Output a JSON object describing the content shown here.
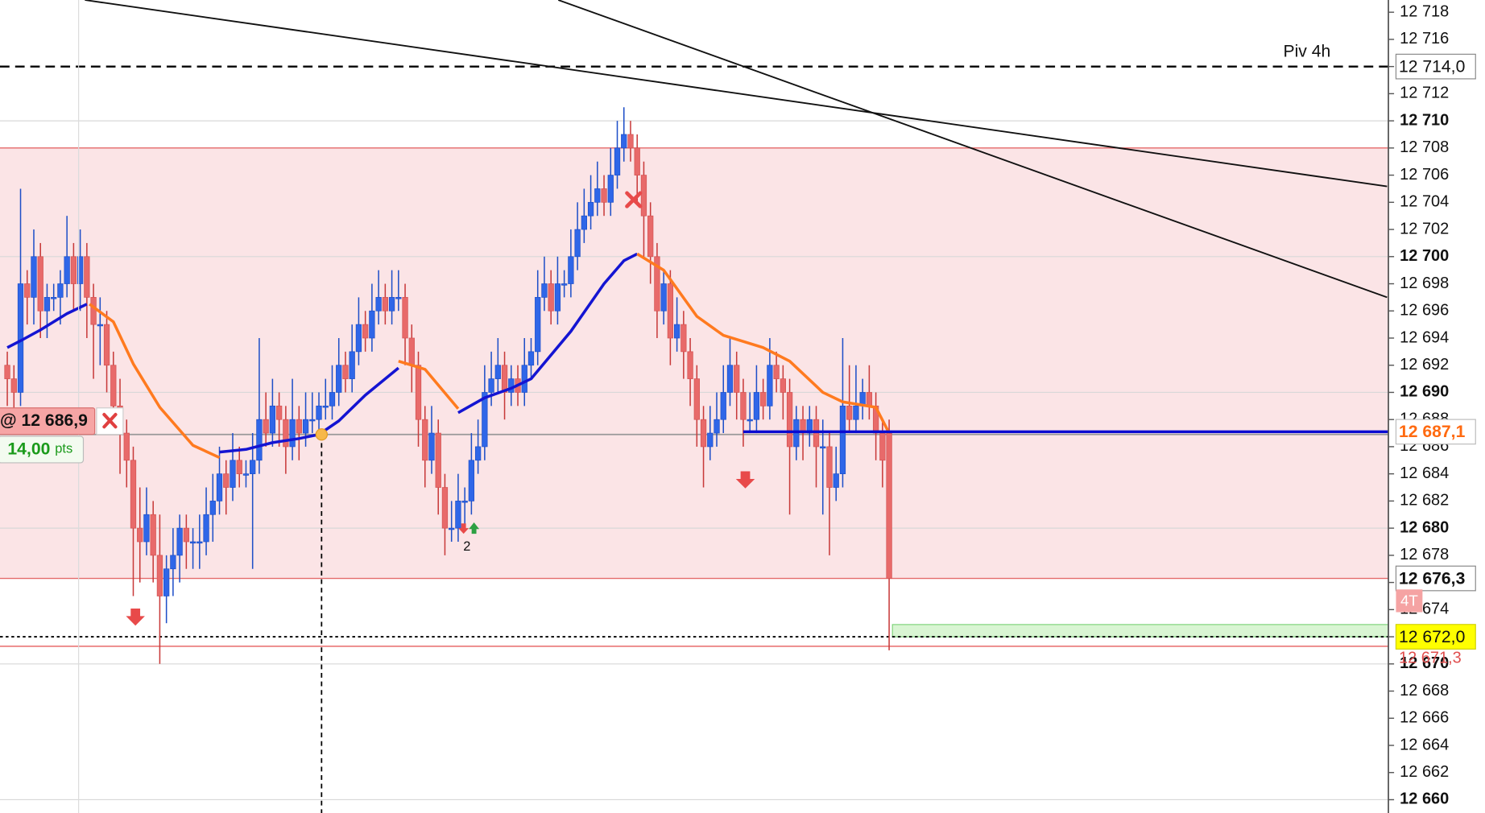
{
  "chart_data": {
    "type": "candlestick",
    "xlim": [
      -1.1,
      208.3
    ],
    "ylim": [
      12659.02,
      12718.9
    ],
    "yticks": [
      {
        "value": 12660,
        "label": "12 660"
      },
      {
        "value": 12662,
        "label": "12 662"
      },
      {
        "value": 12664,
        "label": "12 664"
      },
      {
        "value": 12666,
        "label": "12 666"
      },
      {
        "value": 12668,
        "label": "12 668"
      },
      {
        "value": 12670,
        "label": "12 670"
      },
      {
        "value": 12672,
        "label": "12 672"
      },
      {
        "value": 12674,
        "label": "12 674"
      },
      {
        "value": 12676,
        "label": "12 676"
      },
      {
        "value": 12678,
        "label": "12 678"
      },
      {
        "value": 12680,
        "label": "12 680"
      },
      {
        "value": 12682,
        "label": "12 682"
      },
      {
        "value": 12684,
        "label": "12 684"
      },
      {
        "value": 12686,
        "label": "12 686"
      },
      {
        "value": 12688,
        "label": "12 688"
      },
      {
        "value": 12690,
        "label": "12 690"
      },
      {
        "value": 12692,
        "label": "12 692"
      },
      {
        "value": 12694,
        "label": "12 694"
      },
      {
        "value": 12696,
        "label": "12 696"
      },
      {
        "value": 12698,
        "label": "12 698"
      },
      {
        "value": 12700,
        "label": "12 700"
      },
      {
        "value": 12702,
        "label": "12 702"
      },
      {
        "value": 12704,
        "label": "12 704"
      },
      {
        "value": 12706,
        "label": "12 706"
      },
      {
        "value": 12708,
        "label": "12 708"
      },
      {
        "value": 12710,
        "label": "12 710"
      },
      {
        "value": 12712,
        "label": "12 712"
      },
      {
        "value": 12714,
        "label": "12 714"
      },
      {
        "value": 12716,
        "label": "12 716"
      },
      {
        "value": 12718,
        "label": "12 718"
      }
    ],
    "up_color": "#2f66e8",
    "down_color": "#e86a6a",
    "candles": [
      [
        12692,
        12693,
        12689,
        12691
      ],
      [
        12691,
        12692,
        12688,
        12690
      ],
      [
        12690,
        12705,
        12689,
        12698
      ],
      [
        12698,
        12699,
        12695,
        12697
      ],
      [
        12697,
        12702,
        12695,
        12700
      ],
      [
        12700,
        12701,
        12694,
        12696
      ],
      [
        12696,
        12698,
        12694,
        12697
      ],
      [
        12697,
        12698,
        12696,
        12697
      ],
      [
        12697,
        12699,
        12695,
        12698
      ],
      [
        12698,
        12703,
        12697,
        12700
      ],
      [
        12700,
        12701,
        12696,
        12698
      ],
      [
        12698,
        12702,
        12696,
        12700
      ],
      [
        12700,
        12701,
        12694,
        12697
      ],
      [
        12697,
        12698,
        12691,
        12695
      ],
      [
        12695,
        12697,
        12692,
        12695
      ],
      [
        12695,
        12696,
        12690,
        12692
      ],
      [
        12692,
        12693,
        12687,
        12689
      ],
      [
        12689,
        12691,
        12684,
        12687
      ],
      [
        12687,
        12688,
        12683,
        12685
      ],
      [
        12685,
        12686,
        12675,
        12680
      ],
      [
        12680,
        12683,
        12676,
        12679
      ],
      [
        12679,
        12683,
        12678,
        12681
      ],
      [
        12681,
        12682,
        12676,
        12678
      ],
      [
        12678,
        12681,
        12670,
        12675
      ],
      [
        12675,
        12678,
        12673,
        12677
      ],
      [
        12677,
        12680,
        12675,
        12678
      ],
      [
        12678,
        12681,
        12676,
        12680
      ],
      [
        12680,
        12681,
        12677,
        12679
      ],
      [
        12679,
        12680,
        12677,
        12679
      ],
      [
        12679,
        12681,
        12677,
        12679
      ],
      [
        12679,
        12683,
        12678,
        12681
      ],
      [
        12681,
        12684,
        12679,
        12682
      ],
      [
        12682,
        12686,
        12681,
        12684
      ],
      [
        12684,
        12685,
        12681,
        12683
      ],
      [
        12683,
        12687,
        12682,
        12685
      ],
      [
        12685,
        12686,
        12683,
        12684
      ],
      [
        12684,
        12685,
        12683,
        12684
      ],
      [
        12684,
        12687,
        12677,
        12685
      ],
      [
        12685,
        12694,
        12684,
        12688
      ],
      [
        12688,
        12690,
        12686,
        12687
      ],
      [
        12687,
        12691,
        12686,
        12689
      ],
      [
        12689,
        12690,
        12686,
        12688
      ],
      [
        12688,
        12689,
        12684,
        12686
      ],
      [
        12686,
        12691,
        12685,
        12688
      ],
      [
        12688,
        12689,
        12685,
        12687
      ],
      [
        12687,
        12690,
        12686,
        12688
      ],
      [
        12688,
        12690,
        12687,
        12688
      ],
      [
        12688,
        12690,
        12687,
        12689
      ],
      [
        12689,
        12691,
        12688,
        12689
      ],
      [
        12689,
        12692,
        12688,
        12690
      ],
      [
        12690,
        12694,
        12689,
        12692
      ],
      [
        12692,
        12693,
        12690,
        12691
      ],
      [
        12691,
        12695,
        12690,
        12693
      ],
      [
        12693,
        12697,
        12692,
        12695
      ],
      [
        12695,
        12696,
        12693,
        12694
      ],
      [
        12694,
        12698,
        12693,
        12696
      ],
      [
        12696,
        12699,
        12695,
        12697
      ],
      [
        12697,
        12698,
        12695,
        12696
      ],
      [
        12696,
        12699,
        12695,
        12697
      ],
      [
        12697,
        12699,
        12696,
        12697
      ],
      [
        12697,
        12698,
        12692,
        12694
      ],
      [
        12694,
        12695,
        12690,
        12692
      ],
      [
        12692,
        12693,
        12686,
        12688
      ],
      [
        12688,
        12689,
        12683,
        12685
      ],
      [
        12685,
        12689,
        12684,
        12687
      ],
      [
        12687,
        12688,
        12681,
        12683
      ],
      [
        12683,
        12684,
        12678,
        12680
      ],
      [
        12680,
        12682,
        12679,
        12680
      ],
      [
        12680,
        12684,
        12679,
        12682
      ],
      [
        12682,
        12683,
        12680,
        12682
      ],
      [
        12682,
        12687,
        12681,
        12685
      ],
      [
        12685,
        12688,
        12684,
        12686
      ],
      [
        12686,
        12692,
        12685,
        12690
      ],
      [
        12690,
        12693,
        12689,
        12691
      ],
      [
        12691,
        12694,
        12690,
        12692
      ],
      [
        12692,
        12693,
        12688,
        12690
      ],
      [
        12690,
        12692,
        12689,
        12691
      ],
      [
        12691,
        12692,
        12689,
        12690
      ],
      [
        12690,
        12694,
        12689,
        12692
      ],
      [
        12692,
        12694,
        12691,
        12693
      ],
      [
        12693,
        12699,
        12692,
        12697
      ],
      [
        12697,
        12700,
        12696,
        12698
      ],
      [
        12698,
        12699,
        12695,
        12696
      ],
      [
        12696,
        12700,
        12695,
        12698
      ],
      [
        12698,
        12699,
        12697,
        12698
      ],
      [
        12698,
        12702,
        12697,
        12700
      ],
      [
        12700,
        12704,
        12699,
        12702
      ],
      [
        12702,
        12705,
        12701,
        12703
      ],
      [
        12703,
        12706,
        12702,
        12704
      ],
      [
        12704,
        12707,
        12703,
        12705
      ],
      [
        12705,
        12706,
        12703,
        12704
      ],
      [
        12704,
        12708,
        12703,
        12706
      ],
      [
        12706,
        12710,
        12705,
        12708
      ],
      [
        12708,
        12711,
        12707,
        12709
      ],
      [
        12709,
        12710,
        12707,
        12708
      ],
      [
        12708,
        12709,
        12704,
        12706
      ],
      [
        12706,
        12707,
        12700,
        12703
      ],
      [
        12703,
        12704,
        12698,
        12700
      ],
      [
        12700,
        12701,
        12694,
        12696
      ],
      [
        12696,
        12699,
        12695,
        12698
      ],
      [
        12698,
        12699,
        12692,
        12694
      ],
      [
        12694,
        12697,
        12693,
        12695
      ],
      [
        12695,
        12696,
        12691,
        12693
      ],
      [
        12693,
        12694,
        12689,
        12691
      ],
      [
        12691,
        12692,
        12686,
        12688
      ],
      [
        12688,
        12689,
        12683,
        12686
      ],
      [
        12686,
        12689,
        12685,
        12687
      ],
      [
        12687,
        12690,
        12686,
        12688
      ],
      [
        12688,
        12692,
        12687,
        12690
      ],
      [
        12690,
        12694,
        12689,
        12692
      ],
      [
        12692,
        12693,
        12688,
        12690
      ],
      [
        12690,
        12691,
        12686,
        12688
      ],
      [
        12688,
        12690,
        12687,
        12688
      ],
      [
        12688,
        12692,
        12687,
        12690
      ],
      [
        12690,
        12691,
        12688,
        12689
      ],
      [
        12689,
        12694,
        12688,
        12692
      ],
      [
        12692,
        12693,
        12690,
        12691
      ],
      [
        12691,
        12692,
        12688,
        12690
      ],
      [
        12690,
        12691,
        12681,
        12686
      ],
      [
        12686,
        12689,
        12685,
        12688
      ],
      [
        12688,
        12689,
        12685,
        12687
      ],
      [
        12687,
        12689,
        12686,
        12688
      ],
      [
        12688,
        12689,
        12683,
        12686
      ],
      [
        12686,
        12688,
        12681,
        12686
      ],
      [
        12686,
        12687,
        12678,
        12683
      ],
      [
        12683,
        12686,
        12682,
        12684
      ],
      [
        12684,
        12694,
        12683,
        12689
      ],
      [
        12689,
        12692,
        12687,
        12688
      ],
      [
        12688,
        12692,
        12687,
        12689
      ],
      [
        12689,
        12691,
        12688,
        12690
      ],
      [
        12690,
        12692,
        12688,
        12689
      ],
      [
        12689,
        12690,
        12685,
        12687
      ],
      [
        12687,
        12688,
        12683,
        12685
      ],
      [
        12687,
        12688,
        12671,
        12676.3
      ]
    ],
    "moving_averages": [
      {
        "color": "#1414d2",
        "x": [
          0,
          2,
          5,
          9,
          12,
          null,
          32,
          36,
          40,
          44,
          47,
          50,
          54,
          59,
          null,
          68,
          72,
          76,
          79,
          85,
          90,
          93,
          95
        ],
        "values": [
          12693.3,
          12693.8,
          12694.6,
          12695.8,
          12696.5,
          null,
          12685.6,
          12685.8,
          12686.3,
          12686.6,
          12686.9,
          12687.9,
          12689.8,
          12691.8,
          null,
          12688.5,
          12689.6,
          12690.3,
          12691.0,
          12694.5,
          12698.0,
          12699.7,
          12700.2
        ]
      },
      {
        "color": "#ff7a1f",
        "x": [
          12.4,
          16,
          19,
          23,
          28,
          32,
          null,
          59,
          63,
          68,
          null,
          95,
          99,
          104,
          108,
          114,
          118,
          123,
          126,
          131,
          133
        ],
        "values": [
          12696.5,
          12695.2,
          12692.1,
          12688.9,
          12686.1,
          12685.2,
          null,
          12692.3,
          12691.7,
          12688.8,
          null,
          12700.2,
          12699.0,
          12695.6,
          12694.2,
          12693.3,
          12692.3,
          12690.0,
          12689.3,
          12688.9,
          12687.0
        ]
      }
    ],
    "trend_lines": [
      {
        "color": "#111111",
        "x": [
          11.7,
          208.1
        ],
        "values": [
          12718.9,
          12705.17
        ]
      },
      {
        "color": "#111111",
        "x": [
          83.1,
          208.1
        ],
        "values": [
          12718.9,
          12697.0
        ]
      }
    ],
    "zone": {
      "top": 12708,
      "bottom": 12676.3,
      "fill": "#fbe4e6",
      "border": "#e46a6a"
    },
    "pivot": {
      "name": "Piv 4h",
      "value": 12714.0,
      "value_label": "12 714,0"
    },
    "current_line": {
      "value": 12687.1,
      "value_label": "12 687,1",
      "start_x": 111,
      "color": "#0a0ad0"
    },
    "last_close": {
      "value": 12676.3,
      "value_label": "12 676,3"
    },
    "entry": {
      "x": 47.4,
      "value": 12686.9,
      "label": "@ 12 686,9",
      "pnl": "14,00",
      "pnl_unit": "pts"
    },
    "order": {
      "value": 12672.0,
      "value_label": "12 672,0",
      "band_top": 12672.9,
      "start_x": 133.5,
      "tag": "4T"
    },
    "stop": {
      "value": 12671.3,
      "value_label": "12 671,3"
    },
    "signal_label": "2"
  }
}
